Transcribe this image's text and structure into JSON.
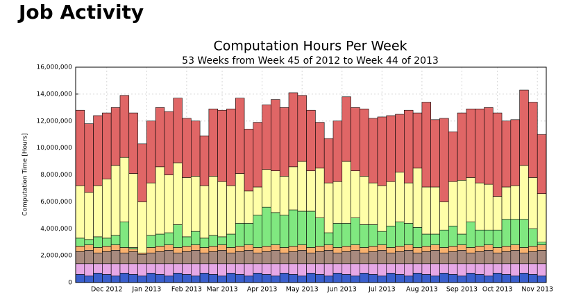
{
  "header": {
    "title": "Job Activity"
  },
  "chart_data": {
    "type": "stacked_bar",
    "title": "Computation Hours Per Week",
    "subtitle": "53 Weeks from Week 45 of 2012 to Week 44 of 2013",
    "y_label": "Computation Time [Hours]",
    "categories": [
      null,
      null,
      null,
      null,
      null,
      null,
      null,
      null,
      null,
      null,
      null,
      null,
      null,
      null,
      null,
      null,
      null,
      null,
      null,
      null,
      null,
      null,
      null,
      null,
      null,
      null,
      null,
      null,
      null,
      null,
      null,
      null,
      null,
      null,
      null,
      null,
      null,
      null,
      null,
      null,
      null,
      null,
      null,
      null,
      null,
      null,
      null,
      null,
      null,
      null,
      null,
      null,
      null
    ],
    "xlim": [
      0,
      53
    ],
    "xticks": [
      {
        "value": 3.5,
        "label": "Dec 2012"
      },
      {
        "value": 8,
        "label": "Jan 2013"
      },
      {
        "value": 12.5,
        "label": "Feb 2013"
      },
      {
        "value": 16.5,
        "label": "Mar 2013"
      },
      {
        "value": 21,
        "label": "Apr 2013"
      },
      {
        "value": 25.5,
        "label": "May 2013"
      },
      {
        "value": 30,
        "label": "Jun 2013"
      },
      {
        "value": 34.5,
        "label": "Jul 2013"
      },
      {
        "value": 39,
        "label": "Aug 2013"
      },
      {
        "value": 43.5,
        "label": "Sep 2013"
      },
      {
        "value": 47.5,
        "label": "Oct 2013"
      },
      {
        "value": 52,
        "label": "Nov 2013"
      }
    ],
    "ylim": [
      0,
      16000000
    ],
    "yticks": [
      0,
      {
        "value": 2000000,
        "label": "2,000,000"
      },
      {
        "value": 4000000,
        "label": "4,000,000"
      },
      {
        "value": 6000000,
        "label": "6,000,000"
      },
      {
        "value": 8000000,
        "label": "8,000,000"
      },
      {
        "value": 10000000,
        "label": "10,000,000"
      },
      {
        "value": 12000000,
        "label": "12,000,000"
      },
      {
        "value": 14000000,
        "label": "14,000,000"
      },
      {
        "value": 16000000,
        "label": "16,000,000"
      }
    ],
    "grid": true,
    "series": [
      {
        "color": "#3a5fcd",
        "values": [
          600000,
          500000,
          700000,
          600000,
          500000,
          700000,
          600000,
          500000,
          700000,
          600000,
          500000,
          700000,
          600000,
          500000,
          700000,
          600000,
          500000,
          700000,
          600000,
          500000,
          700000,
          600000,
          500000,
          700000,
          600000,
          500000,
          700000,
          600000,
          500000,
          700000,
          600000,
          500000,
          700000,
          600000,
          500000,
          700000,
          600000,
          500000,
          700000,
          600000,
          500000,
          700000,
          600000,
          500000,
          700000,
          600000,
          500000,
          700000,
          600000,
          500000,
          700000,
          600000,
          500000
        ]
      },
      {
        "color": "#e6a8e6",
        "values": [
          800000,
          900000,
          700000,
          800000,
          900000,
          700000,
          800000,
          900000,
          700000,
          800000,
          900000,
          700000,
          800000,
          900000,
          700000,
          800000,
          900000,
          700000,
          800000,
          900000,
          700000,
          800000,
          900000,
          700000,
          800000,
          900000,
          700000,
          800000,
          900000,
          700000,
          800000,
          900000,
          700000,
          800000,
          900000,
          700000,
          800000,
          900000,
          700000,
          800000,
          900000,
          700000,
          800000,
          900000,
          700000,
          800000,
          900000,
          700000,
          800000,
          900000,
          700000,
          800000,
          900000
        ]
      },
      {
        "color": "#a88a7e",
        "values": [
          900000,
          1000000,
          800000,
          900000,
          1000000,
          800000,
          900000,
          700000,
          800000,
          900000,
          1000000,
          800000,
          900000,
          1000000,
          800000,
          900000,
          1000000,
          800000,
          900000,
          1000000,
          800000,
          900000,
          1000000,
          800000,
          900000,
          1000000,
          800000,
          900000,
          1000000,
          800000,
          900000,
          1000000,
          800000,
          900000,
          1000000,
          800000,
          900000,
          1000000,
          800000,
          900000,
          1000000,
          800000,
          900000,
          1000000,
          800000,
          900000,
          1000000,
          800000,
          900000,
          1000000,
          800000,
          900000,
          1000000
        ]
      },
      {
        "color": "#f9b16e",
        "values": [
          400000,
          400000,
          400000,
          400000,
          400000,
          400000,
          200000,
          100000,
          400000,
          400000,
          400000,
          400000,
          400000,
          400000,
          400000,
          400000,
          400000,
          400000,
          400000,
          400000,
          400000,
          400000,
          400000,
          400000,
          400000,
          400000,
          400000,
          400000,
          400000,
          400000,
          400000,
          400000,
          400000,
          400000,
          400000,
          400000,
          400000,
          400000,
          400000,
          400000,
          400000,
          400000,
          400000,
          400000,
          400000,
          400000,
          400000,
          400000,
          400000,
          400000,
          400000,
          400000,
          400000
        ]
      },
      {
        "color": "#80e880",
        "values": [
          600000,
          400000,
          800000,
          600000,
          700000,
          1900000,
          100000,
          0,
          900000,
          900000,
          900000,
          1700000,
          700000,
          1000000,
          700000,
          800000,
          600000,
          1000000,
          1700000,
          1600000,
          2400000,
          2900000,
          2400000,
          2400000,
          2700000,
          2500000,
          2700000,
          2100000,
          900000,
          1800000,
          1700000,
          2000000,
          1700000,
          1600000,
          1000000,
          1600000,
          1800000,
          1600000,
          1500000,
          900000,
          800000,
          1300000,
          1500000,
          800000,
          1900000,
          1200000,
          1100000,
          1300000,
          2000000,
          1900000,
          2100000,
          1300000,
          200000
        ]
      },
      {
        "color": "#ffffa8",
        "values": [
          3900000,
          3500000,
          3800000,
          4400000,
          5200000,
          4800000,
          5500000,
          3800000,
          3900000,
          5000000,
          4300000,
          4600000,
          4400000,
          4100000,
          3900000,
          4400000,
          4100000,
          3600000,
          3700000,
          2400000,
          2100000,
          2800000,
          3100000,
          2900000,
          3200000,
          3700000,
          3000000,
          3700000,
          3700000,
          3100000,
          4600000,
          3500000,
          3600000,
          3100000,
          3400000,
          3300000,
          3700000,
          3000000,
          4400000,
          3500000,
          3500000,
          2100000,
          3300000,
          4000000,
          3300000,
          3500000,
          3400000,
          2500000,
          2400000,
          2500000,
          4000000,
          3800000,
          3600000
        ]
      },
      {
        "color": "#e06666",
        "values": [
          5600000,
          5100000,
          5200000,
          4900000,
          4300000,
          4600000,
          4500000,
          4300000,
          4600000,
          4400000,
          4700000,
          4800000,
          4400000,
          4100000,
          3700000,
          5000000,
          5300000,
          5700000,
          5600000,
          4600000,
          4800000,
          4800000,
          5300000,
          5100000,
          5500000,
          4900000,
          4500000,
          3400000,
          3300000,
          4500000,
          4800000,
          4700000,
          5000000,
          4800000,
          5100000,
          4900000,
          4300000,
          5400000,
          4100000,
          6300000,
          5000000,
          6200000,
          3700000,
          5000000,
          5100000,
          5500000,
          5700000,
          6200000,
          4900000,
          4900000,
          5600000,
          5600000,
          4400000
        ]
      }
    ]
  }
}
